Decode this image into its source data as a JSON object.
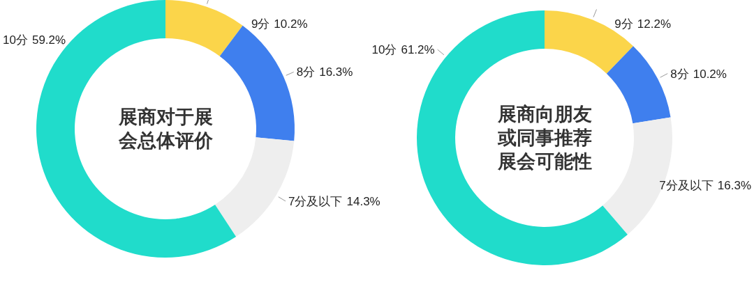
{
  "chart_data": [
    {
      "type": "donut",
      "title": "展商对于展会总体评价",
      "categories": [
        "9分",
        "8分",
        "7分及以下",
        "10分"
      ],
      "values": [
        10.2,
        16.3,
        14.3,
        59.2
      ],
      "colors": [
        "#fbd54a",
        "#3f7fee",
        "#eeeeee",
        "#20dccb"
      ],
      "value_labels": [
        "10.2%",
        "16.3%",
        "14.3%",
        "59.2%"
      ]
    },
    {
      "type": "donut",
      "title": "展商向朋友或同事推荐展会可能性",
      "categories": [
        "9分",
        "8分",
        "7分及以下",
        "10分"
      ],
      "values": [
        12.2,
        10.2,
        16.3,
        61.2
      ],
      "colors": [
        "#fbd54a",
        "#3f7fee",
        "#eeeeee",
        "#20dccb"
      ],
      "value_labels": [
        "12.2%",
        "10.2%",
        "16.3%",
        "61.2%"
      ]
    }
  ]
}
